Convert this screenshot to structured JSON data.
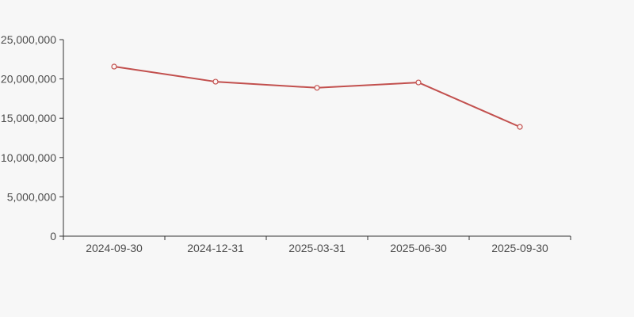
{
  "chart_data": {
    "type": "line",
    "title": "",
    "xlabel": "",
    "ylabel": "",
    "categories": [
      "2024-09-30",
      "2024-12-31",
      "2025-03-31",
      "2025-06-30",
      "2025-09-30"
    ],
    "series": [
      {
        "name": "value",
        "values": [
          21570000,
          19650000,
          18870000,
          19550000,
          13900000
        ]
      }
    ],
    "ylim": [
      0,
      25000000
    ],
    "y_ticks": [
      0,
      5000000,
      10000000,
      15000000,
      20000000,
      25000000
    ],
    "y_tick_labels": [
      "0",
      "5,000,000",
      "10,000,000",
      "15,000,000",
      "20,000,000",
      "25,000,000"
    ],
    "grid": false,
    "legend_position": "none",
    "marker_style": "open-circle",
    "colors": {
      "line": "#c2504e",
      "marker_fill": "#fbf7f6",
      "axis": "#333333",
      "tick_label": "#4c4c4c",
      "background": "#f7f7f7"
    }
  }
}
